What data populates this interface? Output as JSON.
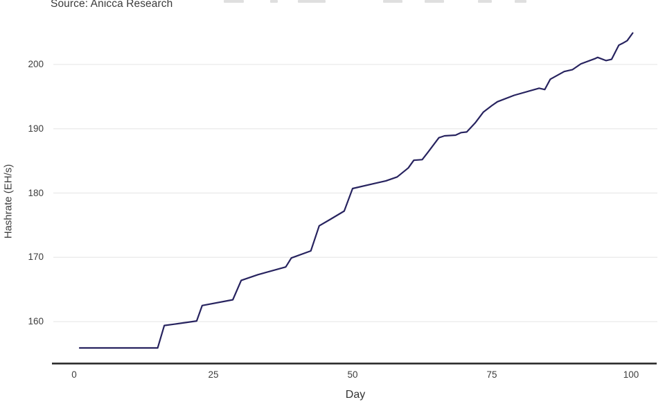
{
  "annotations": {
    "source_note": "Source: Anicca Research"
  },
  "chart_data": {
    "type": "line",
    "xlabel": "Day",
    "ylabel": "Hashrate (EH/s)",
    "x_ticks": [
      "0",
      "25",
      "50",
      "75",
      "100"
    ],
    "x_tick_values": [
      0,
      25,
      50,
      75,
      100
    ],
    "y_ticks": [
      "160",
      "170",
      "180",
      "190",
      "200"
    ],
    "y_tick_values": [
      160,
      170,
      180,
      190,
      200
    ],
    "xlim": [
      -3.7,
      104.9
    ],
    "ylim": [
      153.4,
      206.3
    ],
    "grid": "horizontal-only",
    "legend": "none",
    "series": [
      {
        "name": "Hashrate (EH/s)",
        "x": [
          1,
          15,
          16.2,
          18,
          22,
          23,
          28.5,
          30,
          33,
          38,
          39,
          42.5,
          44,
          46,
          48.5,
          50,
          54,
          56,
          58,
          60,
          61,
          62.5,
          63.5,
          65.5,
          66.5,
          68.5,
          69.5,
          70.5,
          72,
          73.5,
          75,
          76,
          79,
          83.5,
          84.5,
          85.5,
          88,
          89.5,
          91,
          93.5,
          94,
          95.5,
          96.5,
          97.8,
          98.5,
          99.3,
          100.3
        ],
        "y": [
          155.9,
          155.9,
          159.4,
          159.6,
          160.1,
          162.5,
          163.4,
          166.4,
          167.3,
          168.5,
          169.9,
          171.0,
          174.9,
          175.9,
          177.2,
          180.7,
          181.5,
          181.9,
          182.5,
          183.9,
          185.1,
          185.2,
          186.3,
          188.6,
          188.9,
          189.0,
          189.4,
          189.5,
          190.9,
          192.6,
          193.6,
          194.2,
          195.2,
          196.3,
          196.1,
          197.7,
          198.9,
          199.2,
          200.1,
          200.9,
          201.1,
          200.6,
          200.8,
          203.0,
          203.3,
          203.7,
          204.9
        ]
      }
    ]
  },
  "colors": {
    "line": "#27235f",
    "gridline": "#e9e9e9",
    "axis_line": "#222222",
    "tick_text": "#3d3d3d",
    "background": "#ffffff"
  }
}
